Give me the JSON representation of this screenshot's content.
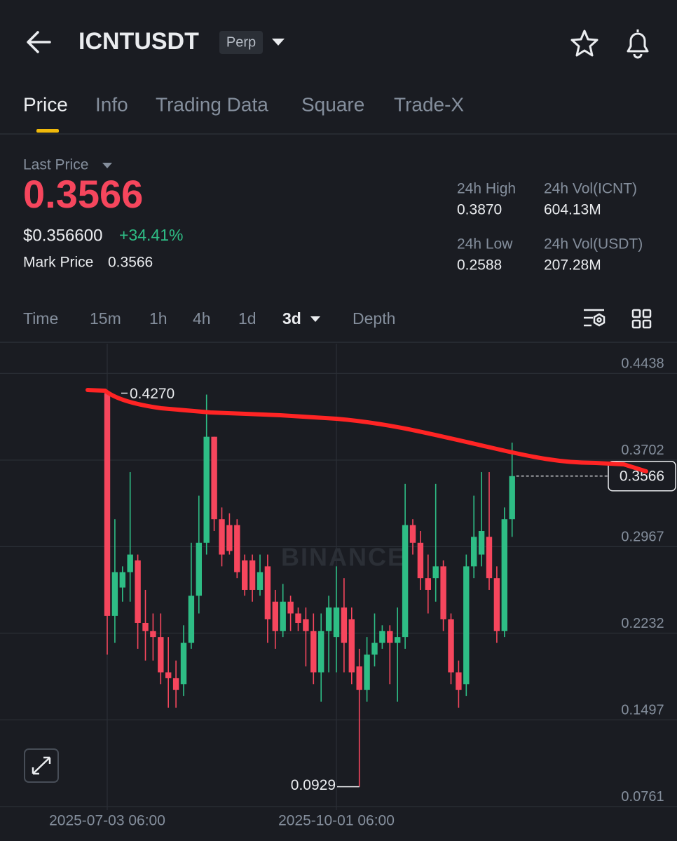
{
  "header": {
    "symbol": "ICNTUSDT",
    "badge": "Perp"
  },
  "tabs": [
    "Price",
    "Info",
    "Trading Data",
    "Square",
    "Trade-X"
  ],
  "ticker": {
    "last_price_label": "Last Price",
    "last_price": 0.3566,
    "usd_price": "$0.356600",
    "change": "+34.41%",
    "mark_price_label": "Mark Price",
    "mark_price": 0.3566,
    "stats": [
      {
        "label": "24h High",
        "value": "0.3870"
      },
      {
        "label": "24h Vol(ICNT)",
        "value": "604.13M"
      },
      {
        "label": "24h Low",
        "value": "0.2588"
      },
      {
        "label": "24h Vol(USDT)",
        "value": "207.28M"
      }
    ]
  },
  "intervals": [
    "Time",
    "15m",
    "1h",
    "4h",
    "1d",
    "3d",
    "Depth"
  ],
  "chart_data": {
    "type": "candlestick",
    "watermark": "BINANCE",
    "up_color": "#2ebd85",
    "down_color": "#f6465d",
    "grid": true,
    "categories": [
      "2025-07-03 06:00",
      null,
      null,
      null,
      null,
      null,
      null,
      null,
      null,
      null,
      null,
      null,
      null,
      null,
      null,
      null,
      null,
      null,
      null,
      null,
      null,
      null,
      null,
      null,
      null,
      null,
      null,
      null,
      null,
      null,
      "2025-10-01 06:00",
      null,
      null,
      null,
      null,
      null,
      null,
      null,
      null,
      null,
      null,
      null,
      null,
      null,
      null,
      null,
      null,
      null,
      null,
      null,
      null,
      null,
      null,
      null
    ],
    "open": [
      0.427,
      0.238,
      0.262,
      0.275,
      0.285,
      0.232,
      0.225,
      0.22,
      0.19,
      0.185,
      0.18,
      0.215,
      0.255,
      0.3,
      0.39,
      0.32,
      0.315,
      0.315,
      0.285,
      0.285,
      0.26,
      0.28,
      0.25,
      0.225,
      0.25,
      0.24,
      0.235,
      0.225,
      0.19,
      0.225,
      0.22,
      0.245,
      0.235,
      0.195,
      0.175,
      0.205,
      0.215,
      0.225,
      0.215,
      0.22,
      0.315,
      0.3,
      0.27,
      0.27,
      0.28,
      0.235,
      0.19,
      0.18,
      0.28,
      0.29,
      0.305,
      0.27,
      0.225,
      0.32
    ],
    "high": [
      0.427,
      0.32,
      0.28,
      0.36,
      0.29,
      0.26,
      0.24,
      0.24,
      0.22,
      0.2,
      0.23,
      0.3,
      0.34,
      0.4258,
      0.39,
      0.33,
      0.325,
      0.32,
      0.29,
      0.29,
      0.29,
      0.29,
      0.26,
      0.265,
      0.255,
      0.245,
      0.245,
      0.24,
      0.24,
      0.255,
      0.28,
      0.27,
      0.245,
      0.21,
      0.22,
      0.24,
      0.23,
      0.23,
      0.245,
      0.35,
      0.32,
      0.31,
      0.29,
      0.35,
      0.285,
      0.24,
      0.2,
      0.29,
      0.34,
      0.36,
      0.36,
      0.28,
      0.33,
      0.385
    ],
    "low": [
      0.205,
      0.215,
      0.25,
      0.25,
      0.21,
      0.2,
      0.2,
      0.18,
      0.16,
      0.16,
      0.17,
      0.21,
      0.24,
      0.29,
      0.31,
      0.28,
      0.29,
      0.27,
      0.255,
      0.25,
      0.255,
      0.215,
      0.21,
      0.22,
      0.225,
      0.225,
      0.195,
      0.18,
      0.165,
      0.19,
      0.19,
      0.19,
      0.18,
      0.0929,
      0.165,
      0.195,
      0.21,
      0.18,
      0.165,
      0.21,
      0.29,
      0.26,
      0.24,
      0.25,
      0.225,
      0.18,
      0.16,
      0.17,
      0.27,
      0.28,
      0.26,
      0.215,
      0.22,
      0.305
    ],
    "close": [
      0.238,
      0.275,
      0.275,
      0.29,
      0.232,
      0.225,
      0.22,
      0.19,
      0.185,
      0.175,
      0.215,
      0.255,
      0.3,
      0.39,
      0.32,
      0.29,
      0.293,
      0.275,
      0.26,
      0.26,
      0.275,
      0.235,
      0.225,
      0.25,
      0.24,
      0.232,
      0.225,
      0.19,
      0.225,
      0.245,
      0.245,
      0.215,
      0.19,
      0.175,
      0.205,
      0.215,
      0.225,
      0.215,
      0.22,
      0.315,
      0.3,
      0.27,
      0.26,
      0.28,
      0.235,
      0.19,
      0.175,
      0.28,
      0.305,
      0.31,
      0.27,
      0.225,
      0.32,
      0.3566
    ],
    "ylim": [
      0.073,
      0.469
    ],
    "yticks": [
      0.4438,
      0.3702,
      0.2967,
      0.2232,
      0.1497,
      0.0761
    ],
    "high_marker": {
      "value": 0.427,
      "label": "0.4270"
    },
    "low_marker": {
      "value": 0.0929,
      "label": "0.0929"
    },
    "last_price_line": 0.3566
  }
}
